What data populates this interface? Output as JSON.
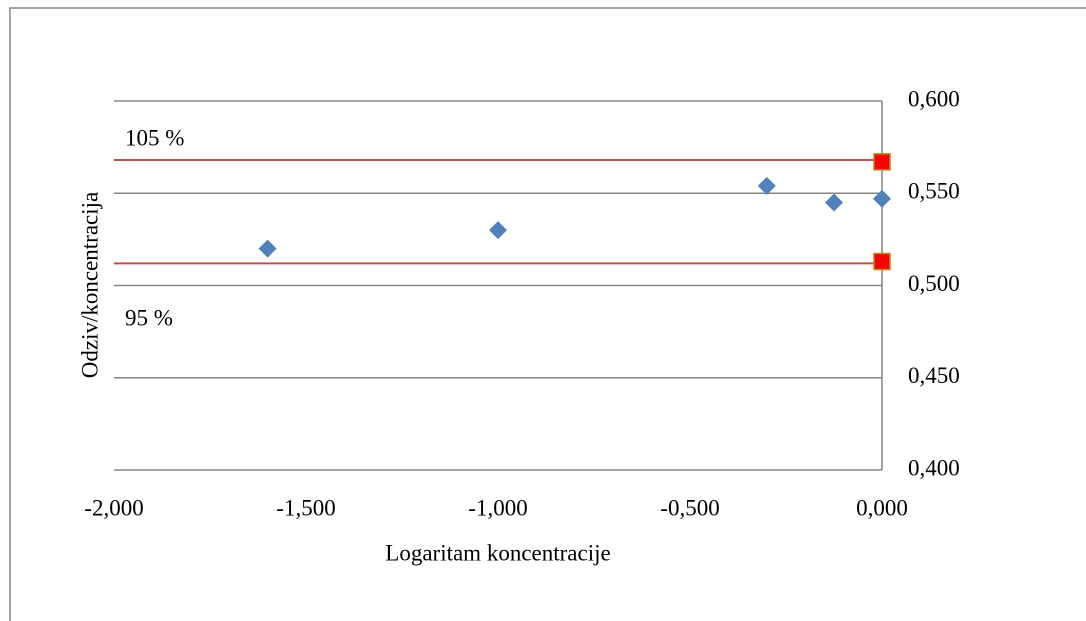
{
  "chart_data": {
    "type": "scatter",
    "x_label": "Logaritam koncentracije",
    "y_label": "Odziv/koncentracija",
    "xlim": [
      -2.0,
      0.0
    ],
    "xticks": [
      {
        "value": -2.0,
        "label": "-2,000"
      },
      {
        "value": -1.5,
        "label": "-1,500"
      },
      {
        "value": -1.0,
        "label": "-1,000"
      },
      {
        "value": -0.5,
        "label": "-0,500"
      },
      {
        "value": 0.0,
        "label": "0,000"
      }
    ],
    "ylim": [
      0.4,
      0.6
    ],
    "yticks": [
      {
        "value": 0.4,
        "label": "0,400"
      },
      {
        "value": 0.45,
        "label": "0,450"
      },
      {
        "value": 0.5,
        "label": "0,500"
      },
      {
        "value": 0.55,
        "label": "0,550"
      },
      {
        "value": 0.6,
        "label": "0,600"
      }
    ],
    "grid": true,
    "reference_lines": [
      {
        "label": "105 %",
        "value": 0.568,
        "color": "#c0504d"
      },
      {
        "label": "95 %",
        "value": 0.512,
        "color": "#c0504d"
      }
    ],
    "series": [
      {
        "marker": "diamond",
        "color": "#4f81bd",
        "x": [
          -1.6,
          -1.0,
          -0.3,
          -0.125,
          0.0
        ],
        "values": [
          0.52,
          0.53,
          0.554,
          0.545,
          0.547
        ]
      },
      {
        "marker": "square",
        "color": "#ff0000",
        "x": [
          0.0,
          0.0
        ],
        "values": [
          0.567,
          0.513
        ]
      }
    ]
  }
}
